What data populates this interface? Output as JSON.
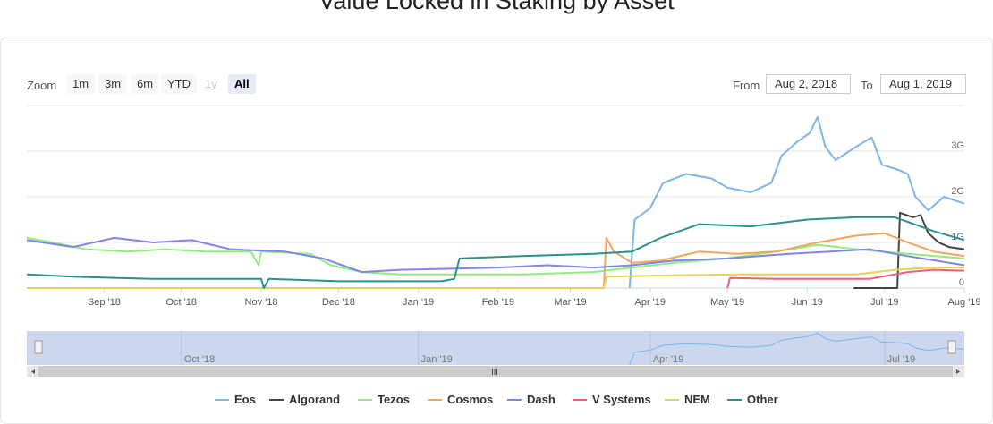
{
  "title": "Value Locked in Staking by Asset",
  "zoom": {
    "label": "Zoom",
    "buttons": [
      {
        "label": "1m",
        "state": "normal"
      },
      {
        "label": "3m",
        "state": "normal"
      },
      {
        "label": "6m",
        "state": "normal"
      },
      {
        "label": "YTD",
        "state": "normal"
      },
      {
        "label": "1y",
        "state": "disabled"
      },
      {
        "label": "All",
        "state": "active"
      }
    ]
  },
  "range": {
    "from_label": "From",
    "from_value": "Aug 2, 2018",
    "to_label": "To",
    "to_value": "Aug 1, 2019"
  },
  "navigator": {
    "labels": [
      "Oct '18",
      "Jan '19",
      "Apr '19",
      "Jul '19"
    ],
    "grip": "III"
  },
  "colors": {
    "accent": "#e6ebf5",
    "navigator_fill": "#c9d5ec",
    "grid": "#e6e6e6"
  },
  "chart_data": {
    "type": "line",
    "title": "Value Locked in Staking by Asset",
    "x_ticks": [
      "Sep '18",
      "Oct '18",
      "Nov '18",
      "Dec '18",
      "Jan '19",
      "Feb '19",
      "Mar '19",
      "Apr '19",
      "May '19",
      "Jun '19",
      "Jul '19",
      "Aug '19"
    ],
    "y_ticks": [
      "0",
      "1G",
      "2G",
      "3G"
    ],
    "ylim": [
      0,
      4
    ],
    "y_unit": "G",
    "xlim": [
      "2018-08-02",
      "2019-08-01"
    ],
    "grid": true,
    "legend_position": "bottom",
    "series": [
      {
        "name": "Eos",
        "color": "#7cb5ec",
        "points": [
          [
            "2019-03-24",
            0
          ],
          [
            "2019-03-26",
            1.5
          ],
          [
            "2019-04-01",
            1.75
          ],
          [
            "2019-04-06",
            2.3
          ],
          [
            "2019-04-15",
            2.5
          ],
          [
            "2019-04-25",
            2.4
          ],
          [
            "2019-05-01",
            2.2
          ],
          [
            "2019-05-10",
            2.1
          ],
          [
            "2019-05-18",
            2.3
          ],
          [
            "2019-05-22",
            2.9
          ],
          [
            "2019-05-28",
            3.2
          ],
          [
            "2019-06-02",
            3.4
          ],
          [
            "2019-06-05",
            3.75
          ],
          [
            "2019-06-08",
            3.1
          ],
          [
            "2019-06-12",
            2.8
          ],
          [
            "2019-06-20",
            3.1
          ],
          [
            "2019-06-26",
            3.3
          ],
          [
            "2019-06-30",
            2.7
          ],
          [
            "2019-07-06",
            2.6
          ],
          [
            "2019-07-10",
            2.5
          ],
          [
            "2019-07-13",
            2.0
          ],
          [
            "2019-07-18",
            1.7
          ],
          [
            "2019-07-24",
            2.0
          ],
          [
            "2019-08-01",
            1.85
          ]
        ]
      },
      {
        "name": "Algorand",
        "color": "#434348",
        "points": [
          [
            "2019-06-19",
            0
          ],
          [
            "2019-07-06",
            0
          ],
          [
            "2019-07-07",
            1.65
          ],
          [
            "2019-07-12",
            1.55
          ],
          [
            "2019-07-15",
            1.6
          ],
          [
            "2019-07-18",
            1.2
          ],
          [
            "2019-07-22",
            1.0
          ],
          [
            "2019-07-26",
            0.9
          ],
          [
            "2019-08-01",
            0.85
          ]
        ]
      },
      {
        "name": "Tezos",
        "color": "#90ed7d",
        "points": [
          [
            "2018-08-02",
            1.1
          ],
          [
            "2018-08-12",
            1.0
          ],
          [
            "2018-08-25",
            0.85
          ],
          [
            "2018-09-10",
            0.8
          ],
          [
            "2018-09-25",
            0.85
          ],
          [
            "2018-10-10",
            0.8
          ],
          [
            "2018-10-28",
            0.8
          ],
          [
            "2018-10-31",
            0.5
          ],
          [
            "2018-11-01",
            0.8
          ],
          [
            "2018-11-20",
            0.75
          ],
          [
            "2018-11-28",
            0.5
          ],
          [
            "2018-12-10",
            0.35
          ],
          [
            "2018-12-25",
            0.3
          ],
          [
            "2019-01-15",
            0.3
          ],
          [
            "2019-02-10",
            0.3
          ],
          [
            "2019-03-10",
            0.35
          ],
          [
            "2019-03-25",
            0.45
          ],
          [
            "2019-04-10",
            0.55
          ],
          [
            "2019-05-01",
            0.65
          ],
          [
            "2019-05-20",
            0.8
          ],
          [
            "2019-06-05",
            0.95
          ],
          [
            "2019-06-20",
            0.85
          ],
          [
            "2019-07-10",
            0.75
          ],
          [
            "2019-08-01",
            0.65
          ]
        ]
      },
      {
        "name": "Cosmos",
        "color": "#f7a35c",
        "points": [
          [
            "2019-03-14",
            0
          ],
          [
            "2019-03-15",
            1.1
          ],
          [
            "2019-03-18",
            0.8
          ],
          [
            "2019-03-25",
            0.55
          ],
          [
            "2019-04-05",
            0.6
          ],
          [
            "2019-04-20",
            0.8
          ],
          [
            "2019-05-05",
            0.75
          ],
          [
            "2019-05-20",
            0.8
          ],
          [
            "2019-06-05",
            1.0
          ],
          [
            "2019-06-20",
            1.15
          ],
          [
            "2019-07-01",
            1.2
          ],
          [
            "2019-07-10",
            1.0
          ],
          [
            "2019-07-20",
            0.8
          ],
          [
            "2019-08-01",
            0.7
          ]
        ]
      },
      {
        "name": "Dash",
        "color": "#8085e9",
        "points": [
          [
            "2018-08-02",
            1.05
          ],
          [
            "2018-08-20",
            0.9
          ],
          [
            "2018-09-05",
            1.1
          ],
          [
            "2018-09-20",
            1.0
          ],
          [
            "2018-10-05",
            1.05
          ],
          [
            "2018-10-20",
            0.85
          ],
          [
            "2018-11-10",
            0.8
          ],
          [
            "2018-11-25",
            0.65
          ],
          [
            "2018-12-10",
            0.35
          ],
          [
            "2018-12-25",
            0.4
          ],
          [
            "2019-01-10",
            0.42
          ],
          [
            "2019-02-01",
            0.45
          ],
          [
            "2019-02-20",
            0.5
          ],
          [
            "2019-03-10",
            0.45
          ],
          [
            "2019-03-25",
            0.5
          ],
          [
            "2019-04-10",
            0.6
          ],
          [
            "2019-05-01",
            0.65
          ],
          [
            "2019-05-25",
            0.75
          ],
          [
            "2019-06-10",
            0.8
          ],
          [
            "2019-06-25",
            0.85
          ],
          [
            "2019-07-10",
            0.7
          ],
          [
            "2019-08-01",
            0.5
          ]
        ]
      },
      {
        "name": "V Systems",
        "color": "#f15c80",
        "points": [
          [
            "2019-05-01",
            0
          ],
          [
            "2019-05-02",
            0.22
          ],
          [
            "2019-05-20",
            0.2
          ],
          [
            "2019-06-10",
            0.2
          ],
          [
            "2019-06-25",
            0.2
          ],
          [
            "2019-07-10",
            0.35
          ],
          [
            "2019-07-20",
            0.4
          ],
          [
            "2019-08-01",
            0.38
          ]
        ]
      },
      {
        "name": "NEM",
        "color": "#e4d354",
        "points": [
          [
            "2018-08-02",
            0
          ],
          [
            "2019-03-14",
            0
          ],
          [
            "2019-03-15",
            0.25
          ],
          [
            "2019-04-10",
            0.28
          ],
          [
            "2019-05-05",
            0.3
          ],
          [
            "2019-05-20",
            0.3
          ],
          [
            "2019-06-05",
            0.3
          ],
          [
            "2019-06-20",
            0.3
          ],
          [
            "2019-07-05",
            0.4
          ],
          [
            "2019-07-20",
            0.45
          ],
          [
            "2019-08-01",
            0.45
          ]
        ]
      },
      {
        "name": "Other",
        "color": "#2b908f",
        "points": [
          [
            "2018-08-02",
            0.3
          ],
          [
            "2018-08-20",
            0.25
          ],
          [
            "2018-09-20",
            0.2
          ],
          [
            "2018-10-20",
            0.2
          ],
          [
            "2018-11-01",
            0.2
          ],
          [
            "2018-11-02",
            0.0
          ],
          [
            "2018-11-04",
            0.2
          ],
          [
            "2018-12-01",
            0.15
          ],
          [
            "2018-12-15",
            0.15
          ],
          [
            "2019-01-10",
            0.15
          ],
          [
            "2019-01-15",
            0.2
          ],
          [
            "2019-01-17",
            0.65
          ],
          [
            "2019-02-10",
            0.7
          ],
          [
            "2019-03-10",
            0.75
          ],
          [
            "2019-03-25",
            0.8
          ],
          [
            "2019-04-05",
            1.1
          ],
          [
            "2019-04-20",
            1.4
          ],
          [
            "2019-05-10",
            1.35
          ],
          [
            "2019-06-01",
            1.5
          ],
          [
            "2019-06-20",
            1.55
          ],
          [
            "2019-07-05",
            1.55
          ],
          [
            "2019-07-20",
            1.25
          ],
          [
            "2019-08-01",
            1.05
          ]
        ]
      }
    ]
  }
}
